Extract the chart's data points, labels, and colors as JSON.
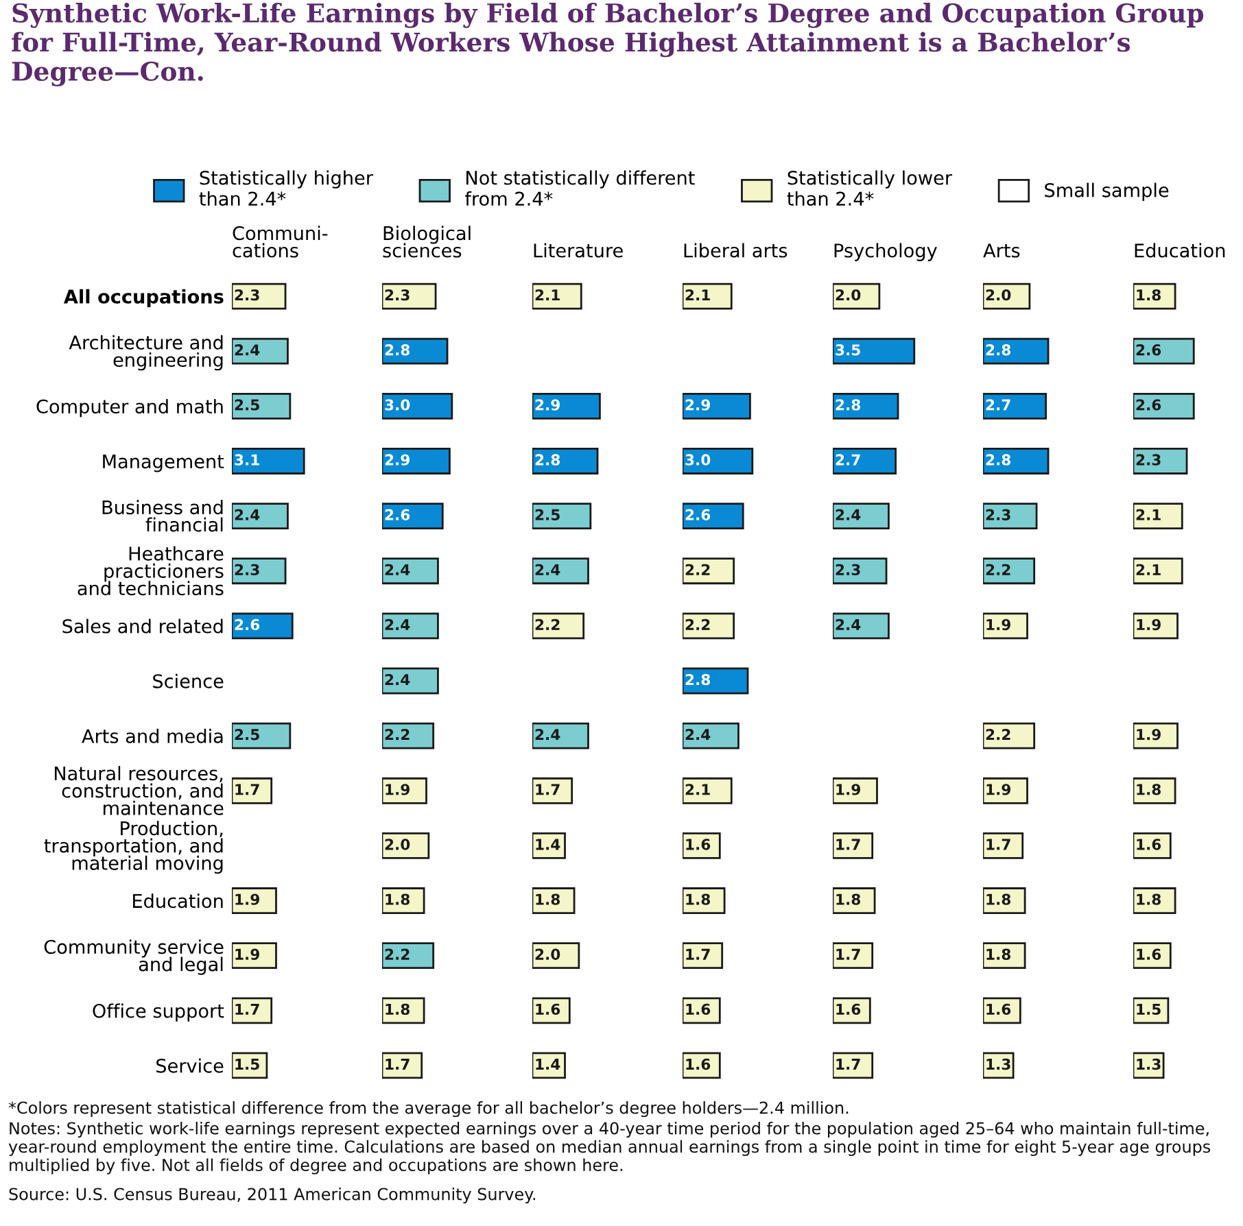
{
  "chart_data": [
    {
      "type": "other",
      "title": "Synthetic Work-Life Earnings by Field of Bachelor’s Degree and Occupation Group for Full-Time, Year-Round Workers Whose Highest Attainment is a Bachelor’s Degree—Con.",
      "annotations": [
        "*Colors represent statistical difference from the average for all bachelor’s degree holders—2.4 million.",
        "Notes: Synthetic work-life earnings represent expected earnings over a 40-year time period for the population aged 25–64 who maintain full-time, year-round employment the entire time. Calculations are based on median annual earnings from a single point in time for eight 5-year age groups multiplied by five. Not all fields of degree and occupations are shown here.",
        "Source: U.S. Census Bureau, 2011 American Community Survey."
      ]
    },
    {
      "type": "bar",
      "orientation": "horizontal",
      "data_labels": true,
      "tick_labels": "y",
      "legend": "top",
      "title": "Communi-\ncations",
      "categories": [
        "All occupations",
        "Architecture and\nengineering",
        "Computer and math",
        "Management",
        "Business and\nfinancial",
        "Heathcare\npracticioners\nand technicians",
        "Sales and related",
        "Science",
        "Arts and media",
        "Natural resources,\nconstruction, and\nmaintenance",
        "Production,\ntransportation, and\nmaterial moving",
        "Education",
        "Community service\nand legal",
        "Office support",
        "Service"
      ],
      "series": [
        {
          "name": "Statistically higher\nthan 2.4*",
          "color": "#0a8ad4",
          "values": [
            null,
            null,
            null,
            3.1,
            null,
            null,
            2.6,
            null,
            null,
            null,
            null,
            null,
            null,
            null,
            null
          ]
        },
        {
          "name": "Not statistically different\nfrom 2.4*",
          "color": "#7ccdd0",
          "values": [
            null,
            2.4,
            2.5,
            null,
            2.4,
            2.3,
            null,
            null,
            2.5,
            null,
            null,
            null,
            null,
            null,
            null
          ]
        },
        {
          "name": "Statistically lower\nthan 2.4*",
          "color": "#f4f5c8",
          "values": [
            2.3,
            null,
            null,
            null,
            null,
            null,
            null,
            null,
            null,
            1.7,
            null,
            1.9,
            1.9,
            1.7,
            1.5
          ]
        },
        {
          "name": "Small sample",
          "color": "#ffffff",
          "values": [
            null,
            null,
            null,
            null,
            null,
            null,
            null,
            null,
            null,
            null,
            null,
            null,
            null,
            null,
            null
          ]
        }
      ]
    },
    {
      "type": "bar",
      "orientation": "horizontal",
      "data_labels": true,
      "tick_labels": false,
      "title": "Biological\nsciences",
      "categories": [
        null,
        null,
        null,
        null,
        null,
        null,
        null,
        null,
        null,
        null,
        null,
        null,
        null,
        null,
        null
      ],
      "series": [
        {
          "color": "#0a8ad4",
          "values": [
            null,
            2.8,
            3.0,
            2.9,
            2.6,
            null,
            null,
            null,
            null,
            null,
            null,
            null,
            null,
            null,
            null
          ],
          "value_labels": [
            null,
            "2.8",
            "3.0",
            "2.9",
            "2.6",
            null,
            null,
            null,
            null,
            null,
            null,
            null,
            null,
            null,
            null
          ]
        },
        {
          "color": "#7ccdd0",
          "values": [
            null,
            null,
            null,
            null,
            null,
            2.4,
            2.4,
            2.4,
            2.2,
            null,
            null,
            null,
            2.2,
            null,
            null
          ]
        },
        {
          "color": "#f4f5c8",
          "values": [
            2.3,
            null,
            null,
            null,
            null,
            null,
            null,
            null,
            null,
            1.9,
            2.0,
            1.8,
            null,
            1.8,
            1.7
          ],
          "value_labels": [
            "2.3",
            null,
            null,
            null,
            null,
            null,
            null,
            null,
            null,
            "1.9",
            "2.0",
            "1.8",
            null,
            "1.8",
            "1.7"
          ]
        }
      ]
    },
    {
      "type": "bar",
      "orientation": "horizontal",
      "data_labels": true,
      "tick_labels": false,
      "title": "Literature",
      "categories": [
        null,
        null,
        null,
        null,
        null,
        null,
        null,
        null,
        null,
        null,
        null,
        null,
        null,
        null,
        null
      ],
      "series": [
        {
          "color": "#0a8ad4",
          "values": [
            null,
            null,
            2.9,
            2.8,
            null,
            null,
            null,
            null,
            null,
            null,
            null,
            null,
            null,
            null,
            null
          ]
        },
        {
          "color": "#7ccdd0",
          "values": [
            null,
            null,
            null,
            null,
            2.5,
            2.4,
            null,
            null,
            2.4,
            null,
            null,
            null,
            null,
            null,
            null
          ]
        },
        {
          "color": "#f4f5c8",
          "values": [
            2.1,
            null,
            null,
            null,
            null,
            null,
            2.2,
            null,
            null,
            1.7,
            1.4,
            1.8,
            2.0,
            1.6,
            1.4
          ],
          "value_labels": [
            "2.1",
            null,
            null,
            null,
            null,
            null,
            "2.2",
            null,
            null,
            "1.7",
            "1.4",
            "1.8",
            "2.0",
            "1.6",
            "1.4"
          ]
        }
      ]
    },
    {
      "type": "bar",
      "orientation": "horizontal",
      "data_labels": true,
      "tick_labels": false,
      "title": "Liberal arts",
      "categories": [
        null,
        null,
        null,
        null,
        null,
        null,
        null,
        null,
        null,
        null,
        null,
        null,
        null,
        null,
        null
      ],
      "series": [
        {
          "color": "#0a8ad4",
          "values": [
            null,
            null,
            2.9,
            3.0,
            2.6,
            null,
            null,
            2.8,
            null,
            null,
            null,
            null,
            null,
            null,
            null
          ],
          "value_labels": [
            null,
            null,
            "2.9",
            "3.0",
            "2.6",
            null,
            null,
            "2.8",
            null,
            null,
            null,
            null,
            null,
            null,
            null
          ]
        },
        {
          "color": "#7ccdd0",
          "values": [
            null,
            null,
            null,
            null,
            null,
            null,
            null,
            null,
            2.4,
            null,
            null,
            null,
            null,
            null,
            null
          ]
        },
        {
          "color": "#f4f5c8",
          "values": [
            2.1,
            null,
            null,
            null,
            null,
            2.2,
            2.2,
            null,
            null,
            2.1,
            1.6,
            1.8,
            1.7,
            1.6,
            1.6
          ]
        }
      ]
    },
    {
      "type": "bar",
      "orientation": "horizontal",
      "data_labels": true,
      "tick_labels": false,
      "title": "Psychology",
      "categories": [
        null,
        null,
        null,
        null,
        null,
        null,
        null,
        null,
        null,
        null,
        null,
        null,
        null,
        null,
        null
      ],
      "series": [
        {
          "color": "#0a8ad4",
          "values": [
            null,
            3.5,
            2.8,
            2.7,
            null,
            null,
            null,
            null,
            null,
            null,
            null,
            null,
            null,
            null,
            null
          ]
        },
        {
          "color": "#7ccdd0",
          "values": [
            null,
            null,
            null,
            null,
            2.4,
            2.3,
            2.4,
            null,
            null,
            null,
            null,
            null,
            null,
            null,
            null
          ]
        },
        {
          "color": "#f4f5c8",
          "values": [
            2.0,
            null,
            null,
            null,
            null,
            null,
            null,
            null,
            null,
            1.9,
            1.7,
            1.8,
            1.7,
            1.6,
            1.7
          ],
          "value_labels": [
            "2.0",
            null,
            null,
            null,
            null,
            null,
            null,
            null,
            null,
            "1.9",
            "1.7",
            "1.8",
            "1.7",
            "1.6",
            "1.7"
          ]
        }
      ]
    },
    {
      "type": "bar",
      "orientation": "horizontal",
      "data_labels": true,
      "tick_labels": false,
      "title": "Arts",
      "categories": [
        null,
        null,
        null,
        null,
        null,
        null,
        null,
        null,
        null,
        null,
        null,
        null,
        null,
        null,
        null
      ],
      "series": [
        {
          "color": "#0a8ad4",
          "values": [
            null,
            2.8,
            2.7,
            2.8,
            null,
            null,
            null,
            null,
            null,
            null,
            null,
            null,
            null,
            null,
            null
          ]
        },
        {
          "color": "#7ccdd0",
          "values": [
            null,
            null,
            null,
            null,
            2.3,
            2.2,
            null,
            null,
            null,
            null,
            null,
            null,
            null,
            null,
            null
          ]
        },
        {
          "color": "#f4f5c8",
          "values": [
            2.0,
            null,
            null,
            null,
            null,
            null,
            1.9,
            null,
            2.2,
            1.9,
            1.7,
            1.8,
            1.8,
            1.6,
            1.3
          ],
          "value_labels": [
            "2.0",
            null,
            null,
            null,
            null,
            null,
            "1.9",
            null,
            "2.2",
            "1.9",
            "1.7",
            "1.8",
            "1.8",
            "1.6",
            "1.3"
          ]
        }
      ]
    },
    {
      "type": "bar",
      "orientation": "horizontal",
      "data_labels": true,
      "tick_labels": false,
      "title": "Education",
      "categories": [
        null,
        null,
        null,
        null,
        null,
        null,
        null,
        null,
        null,
        null,
        null,
        null,
        null,
        null,
        null
      ],
      "series": [
        {
          "color": "#7ccdd0",
          "values": [
            null,
            2.6,
            2.6,
            2.3,
            null,
            null,
            null,
            null,
            null,
            null,
            null,
            null,
            null,
            null,
            null
          ]
        },
        {
          "color": "#f4f5c8",
          "values": [
            1.8,
            null,
            null,
            null,
            2.1,
            2.1,
            1.9,
            null,
            1.9,
            1.8,
            1.6,
            1.8,
            1.6,
            1.5,
            1.3
          ]
        }
      ]
    }
  ]
}
